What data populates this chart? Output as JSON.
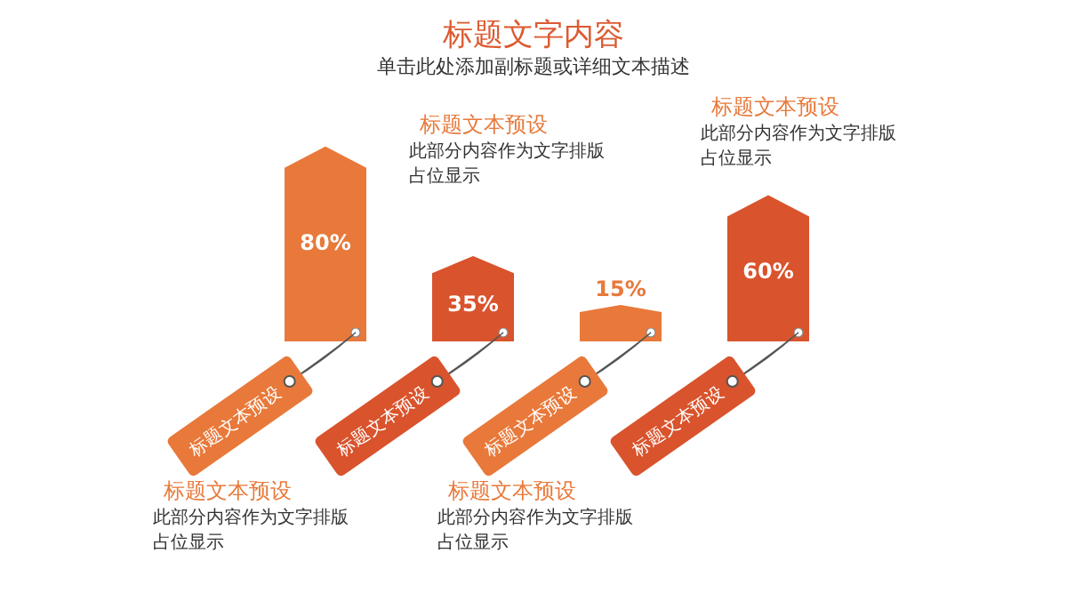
{
  "chart_data": {
    "type": "bar",
    "title": "标题文字内容",
    "subtitle": "单击此处添加副标题或详细文本描述",
    "categories": [
      "标题文本预设",
      "标题文本预设",
      "标题文本预设",
      "标题文本预设"
    ],
    "values": [
      80,
      35,
      15,
      60
    ],
    "colors": [
      "#e8793a",
      "#d9532c",
      "#e8793a",
      "#d9532c"
    ],
    "value_labels": [
      "80%",
      "35%",
      "15%",
      "60%"
    ],
    "annotations": [
      "标题文本预设",
      "此部分内容作为文字排版占位显示",
      "标题文本预设",
      "此部分内容作为文字排版占位显示",
      "标题文本预设",
      "此部分内容作为文字排版占位显示",
      "标题文本预设",
      "此部分内容作为文字排版占位显示"
    ]
  }
}
